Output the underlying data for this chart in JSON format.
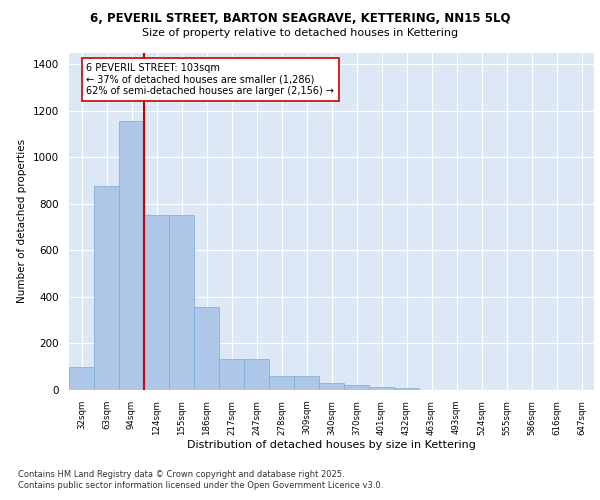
{
  "title": "6, PEVERIL STREET, BARTON SEAGRAVE, KETTERING, NN15 5LQ",
  "subtitle": "Size of property relative to detached houses in Kettering",
  "xlabel": "Distribution of detached houses by size in Kettering",
  "ylabel": "Number of detached properties",
  "categories": [
    "32sqm",
    "63sqm",
    "94sqm",
    "124sqm",
    "155sqm",
    "186sqm",
    "217sqm",
    "247sqm",
    "278sqm",
    "309sqm",
    "340sqm",
    "370sqm",
    "401sqm",
    "432sqm",
    "463sqm",
    "493sqm",
    "524sqm",
    "555sqm",
    "586sqm",
    "616sqm",
    "647sqm"
  ],
  "values": [
    100,
    875,
    1155,
    750,
    750,
    355,
    135,
    135,
    62,
    60,
    28,
    20,
    15,
    10,
    0,
    0,
    0,
    0,
    0,
    0,
    0
  ],
  "bar_color": "#aec6e8",
  "bar_edgecolor": "#7aadd4",
  "vline_x": 2.5,
  "vline_color": "#cc0000",
  "annotation_text": "6 PEVERIL STREET: 103sqm\n← 37% of detached houses are smaller (1,286)\n62% of semi-detached houses are larger (2,156) →",
  "annotation_box_color": "#ffffff",
  "annotation_box_edgecolor": "#cc0000",
  "ylim": [
    0,
    1450
  ],
  "yticks": [
    0,
    200,
    400,
    600,
    800,
    1000,
    1200,
    1400
  ],
  "bg_color": "#dce8f5",
  "footer_line1": "Contains HM Land Registry data © Crown copyright and database right 2025.",
  "footer_line2": "Contains public sector information licensed under the Open Government Licence v3.0."
}
